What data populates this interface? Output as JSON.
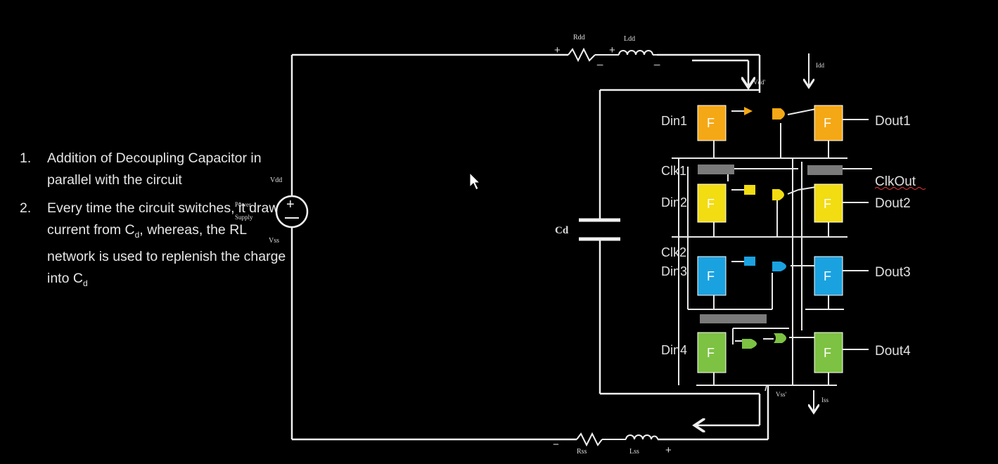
{
  "notes": [
    {
      "num": "1.",
      "text": "Addition of Decoupling Capacitor in parallel with the circuit"
    },
    {
      "num": "2.",
      "text_main": "Every time the circuit switches, it draws current from C",
      "sub1": "d",
      "text_mid": ", whereas, the RL network is used to replenish the charge into C",
      "sub2": "d"
    }
  ],
  "supply": {
    "top_label": "Vdd",
    "bottom_label": "Vss",
    "name_line1": "Power",
    "name_line2": "Supply"
  },
  "rl_top": {
    "r": "Rdd",
    "l": "Ldd",
    "plus1": "+",
    "minus1": "_",
    "plus2": "+",
    "minus2": "_"
  },
  "rl_bottom": {
    "r": "Rss",
    "l": "Lss",
    "minus": "−",
    "plus": "+"
  },
  "capacitor": {
    "label": "Cd"
  },
  "rails": {
    "vdd_node": "Vdd'",
    "idd": "Idd",
    "vss_node": "Vss'",
    "iss": "Iss"
  },
  "ff_label": "F",
  "inputs": [
    "Din1",
    "Din2",
    "Din3",
    "Din4"
  ],
  "clocks": [
    "Clk1",
    "Clk2"
  ],
  "outputs": [
    "Dout1",
    "Dout2",
    "Dout3",
    "Dout4"
  ],
  "clk_out": "ClkOut",
  "colors": {
    "stage1": "#f5a815",
    "stage2": "#f2dc12",
    "stage3": "#1aa2e0",
    "stage4": "#7dc242",
    "gray": "#777777",
    "wire": "#f0f0f0"
  }
}
